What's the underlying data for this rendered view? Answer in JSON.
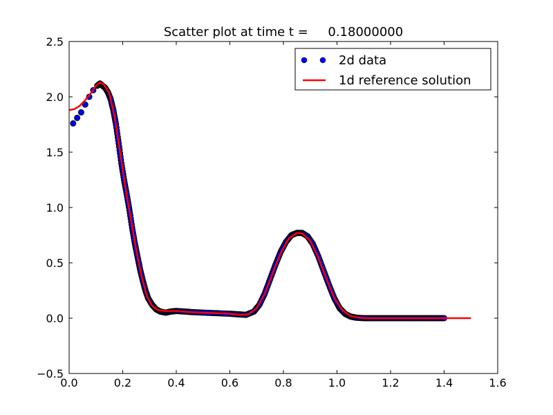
{
  "chart_data": {
    "type": "scatter",
    "title": "Scatter plot at time t =     0.18000000",
    "xlabel": "",
    "ylabel": "",
    "xlim": [
      0.0,
      1.6
    ],
    "ylim": [
      -0.5,
      2.5
    ],
    "xticks": [
      "0.0",
      "0.2",
      "0.4",
      "0.6",
      "0.8",
      "1.0",
      "1.2",
      "1.4",
      "1.6"
    ],
    "yticks": [
      "−0.5",
      "0.0",
      "0.5",
      "1.0",
      "1.5",
      "2.0",
      "2.5"
    ],
    "grid": false,
    "legend_position": "top-right",
    "series": [
      {
        "name": "2d data",
        "kind": "scatter",
        "color": "#0000ff",
        "edge_color": "#000000",
        "points": [
          [
            0.015,
            1.76
          ],
          [
            0.03,
            1.81
          ],
          [
            0.045,
            1.86
          ],
          [
            0.06,
            1.93
          ],
          [
            0.075,
            2.0
          ],
          [
            0.09,
            2.06
          ],
          [
            0.105,
            2.1
          ],
          [
            0.115,
            2.12
          ],
          [
            0.125,
            2.1
          ],
          [
            0.135,
            2.08
          ],
          [
            0.145,
            2.04
          ],
          [
            0.155,
            1.98
          ],
          [
            0.165,
            1.88
          ],
          [
            0.175,
            1.75
          ],
          [
            0.185,
            1.58
          ],
          [
            0.195,
            1.4
          ],
          [
            0.205,
            1.25
          ],
          [
            0.215,
            1.12
          ],
          [
            0.225,
            0.98
          ],
          [
            0.235,
            0.82
          ],
          [
            0.245,
            0.68
          ],
          [
            0.255,
            0.56
          ],
          [
            0.265,
            0.44
          ],
          [
            0.275,
            0.34
          ],
          [
            0.285,
            0.25
          ],
          [
            0.295,
            0.18
          ],
          [
            0.31,
            0.12
          ],
          [
            0.325,
            0.08
          ],
          [
            0.34,
            0.06
          ],
          [
            0.36,
            0.05
          ],
          [
            0.38,
            0.06
          ],
          [
            0.4,
            0.065
          ],
          [
            0.43,
            0.06
          ],
          [
            0.46,
            0.055
          ],
          [
            0.5,
            0.05
          ],
          [
            0.55,
            0.045
          ],
          [
            0.6,
            0.04
          ],
          [
            0.63,
            0.035
          ],
          [
            0.66,
            0.03
          ],
          [
            0.69,
            0.06
          ],
          [
            0.71,
            0.12
          ],
          [
            0.73,
            0.22
          ],
          [
            0.75,
            0.35
          ],
          [
            0.77,
            0.48
          ],
          [
            0.79,
            0.6
          ],
          [
            0.81,
            0.69
          ],
          [
            0.83,
            0.75
          ],
          [
            0.85,
            0.77
          ],
          [
            0.87,
            0.77
          ],
          [
            0.89,
            0.74
          ],
          [
            0.91,
            0.67
          ],
          [
            0.93,
            0.56
          ],
          [
            0.95,
            0.43
          ],
          [
            0.97,
            0.3
          ],
          [
            0.99,
            0.18
          ],
          [
            1.01,
            0.09
          ],
          [
            1.03,
            0.04
          ],
          [
            1.05,
            0.015
          ],
          [
            1.07,
            0.005
          ],
          [
            1.1,
            0.0
          ],
          [
            1.13,
            0.0
          ],
          [
            1.16,
            0.0
          ],
          [
            1.19,
            0.0
          ],
          [
            1.22,
            0.0
          ],
          [
            1.25,
            0.0
          ],
          [
            1.28,
            0.0
          ],
          [
            1.31,
            0.0
          ],
          [
            1.34,
            0.0
          ],
          [
            1.37,
            0.0
          ],
          [
            1.4,
            0.0
          ]
        ]
      },
      {
        "name": "1d reference solution",
        "kind": "line",
        "color": "#ff0000",
        "points": [
          [
            0.0,
            1.88
          ],
          [
            0.02,
            1.89
          ],
          [
            0.04,
            1.92
          ],
          [
            0.06,
            1.97
          ],
          [
            0.08,
            2.03
          ],
          [
            0.1,
            2.1
          ],
          [
            0.115,
            2.13
          ],
          [
            0.13,
            2.11
          ],
          [
            0.15,
            2.03
          ],
          [
            0.17,
            1.82
          ],
          [
            0.19,
            1.5
          ],
          [
            0.21,
            1.18
          ],
          [
            0.23,
            0.9
          ],
          [
            0.25,
            0.62
          ],
          [
            0.27,
            0.38
          ],
          [
            0.29,
            0.2
          ],
          [
            0.31,
            0.11
          ],
          [
            0.33,
            0.075
          ],
          [
            0.36,
            0.065
          ],
          [
            0.4,
            0.065
          ],
          [
            0.45,
            0.055
          ],
          [
            0.5,
            0.05
          ],
          [
            0.55,
            0.045
          ],
          [
            0.6,
            0.04
          ],
          [
            0.64,
            0.03
          ],
          [
            0.67,
            0.035
          ],
          [
            0.7,
            0.09
          ],
          [
            0.73,
            0.22
          ],
          [
            0.76,
            0.41
          ],
          [
            0.79,
            0.59
          ],
          [
            0.82,
            0.72
          ],
          [
            0.85,
            0.77
          ],
          [
            0.87,
            0.765
          ],
          [
            0.9,
            0.7
          ],
          [
            0.93,
            0.55
          ],
          [
            0.96,
            0.36
          ],
          [
            0.99,
            0.18
          ],
          [
            1.02,
            0.07
          ],
          [
            1.05,
            0.02
          ],
          [
            1.08,
            0.005
          ],
          [
            1.1,
            0.0
          ],
          [
            1.2,
            0.0
          ],
          [
            1.3,
            0.0
          ],
          [
            1.4,
            0.0
          ],
          [
            1.5,
            0.0
          ]
        ]
      }
    ]
  }
}
